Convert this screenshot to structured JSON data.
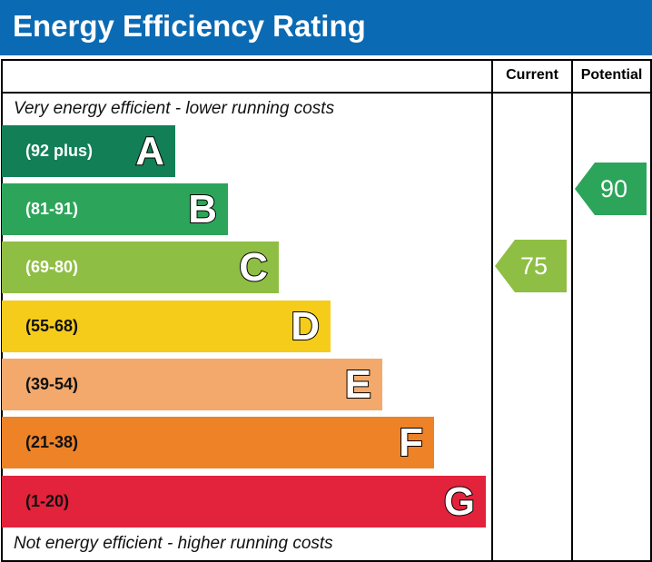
{
  "title": "Energy Efficiency Rating",
  "columns": {
    "current": "Current",
    "potential": "Potential"
  },
  "top_note": "Very energy efficient - lower running costs",
  "bottom_note": "Not energy efficient - higher running costs",
  "chart_data": {
    "type": "bar",
    "bands": [
      {
        "letter": "A",
        "range": "(92 plus)",
        "color": "#127f57"
      },
      {
        "letter": "B",
        "range": "(81-91)",
        "color": "#2ca55a"
      },
      {
        "letter": "C",
        "range": "(69-80)",
        "color": "#8fbe44"
      },
      {
        "letter": "D",
        "range": "(55-68)",
        "color": "#f5cc1a"
      },
      {
        "letter": "E",
        "range": "(39-54)",
        "color": "#f3a96b"
      },
      {
        "letter": "F",
        "range": "(21-38)",
        "color": "#ed8227"
      },
      {
        "letter": "G",
        "range": "(1-20)",
        "color": "#e3223c"
      }
    ],
    "current": {
      "value": "75",
      "band": "C",
      "color": "#8fbe44"
    },
    "potential": {
      "value": "90",
      "band": "B",
      "color": "#2ca55a"
    }
  }
}
